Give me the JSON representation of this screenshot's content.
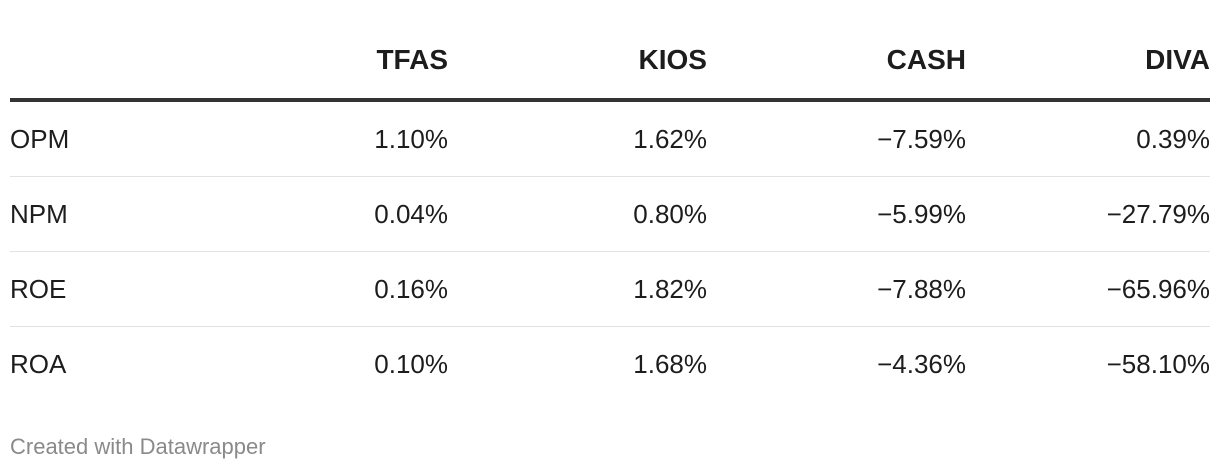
{
  "chart_data": {
    "type": "table",
    "columns": [
      "",
      "TFAS",
      "KIOS",
      "CASH",
      "DIVA"
    ],
    "rows": [
      {
        "label": "OPM",
        "cells": [
          "1.10%",
          "1.62%",
          "−7.59%",
          "0.39%"
        ]
      },
      {
        "label": "NPM",
        "cells": [
          "0.04%",
          "0.80%",
          "−5.99%",
          "−27.79%"
        ]
      },
      {
        "label": "ROE",
        "cells": [
          "0.16%",
          "1.82%",
          "−7.88%",
          "−65.96%"
        ]
      },
      {
        "label": "ROA",
        "cells": [
          "0.10%",
          "1.68%",
          "−4.36%",
          "−58.10%"
        ]
      }
    ],
    "values": {
      "OPM": {
        "TFAS": 1.1,
        "KIOS": 1.62,
        "CASH": -7.59,
        "DIVA": 0.39
      },
      "NPM": {
        "TFAS": 0.04,
        "KIOS": 0.8,
        "CASH": -5.99,
        "DIVA": -27.79
      },
      "ROE": {
        "TFAS": 0.16,
        "KIOS": 1.82,
        "CASH": -7.88,
        "DIVA": -65.96
      },
      "ROA": {
        "TFAS": 0.1,
        "KIOS": 1.68,
        "CASH": -4.36,
        "DIVA": -58.1
      }
    }
  },
  "footer": {
    "credit": "Created with Datawrapper"
  }
}
